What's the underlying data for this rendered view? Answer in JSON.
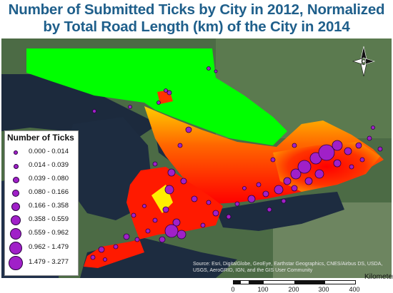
{
  "title": {
    "line1": "Number of Submitted Ticks by City in 2012, Normalized",
    "line2": "by Total Road Length (km) of the City in 2014"
  },
  "legend": {
    "title": "Number of Ticks",
    "classes": [
      {
        "label": "0.000 - 0.014"
      },
      {
        "label": "0.014 - 0.039"
      },
      {
        "label": "0.039 - 0.080"
      },
      {
        "label": "0.080 - 0.166"
      },
      {
        "label": "0.166 - 0.358"
      },
      {
        "label": "0.358 - 0.559"
      },
      {
        "label": "0.559 - 0.962"
      },
      {
        "label": "0.962 - 1.479"
      },
      {
        "label": "1.479 - 3.277"
      }
    ],
    "symbol_color": "#a020c8"
  },
  "credits": "Source: Esri, DigitalGlobe, GeoEye, Earthstar Geographics, CNES/Airbus DS, USDA, USGS, AeroGRID, IGN, and the GIS User Community",
  "scale_bar": {
    "unit": "Kilometers",
    "ticks": [
      "0",
      "100",
      "200",
      "300",
      "400"
    ]
  },
  "north_arrow": {
    "icon": "north-arrow-icon"
  },
  "colors": {
    "title": "#1f5f8b",
    "low_density": "#00ff00",
    "mid_density": "#ffff00",
    "high_density": "#ff0000"
  }
}
